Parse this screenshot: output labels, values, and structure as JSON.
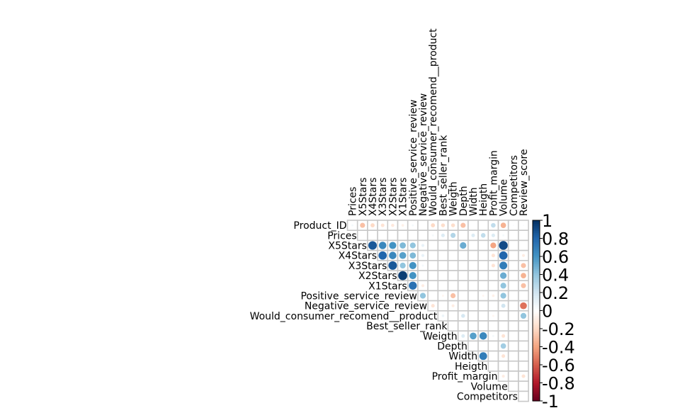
{
  "chart_data": {
    "type": "heatmap",
    "variables": [
      "Product_ID",
      "Prices",
      "X5Stars",
      "X4Stars",
      "X3Stars",
      "X2Stars",
      "X1Stars",
      "Positive_service_review",
      "Negative_service_review",
      "Would_consumer_recomend__product",
      "Best_seller_rank",
      "Weigth",
      "Depth",
      "Width",
      "Heigth",
      "Profit_margin",
      "Volume",
      "Competitors",
      "Review_score"
    ],
    "correlations": [
      [
        1.0,
        0.05,
        -0.3,
        -0.2,
        -0.15,
        -0.12,
        -0.08,
        0.05,
        0.0,
        -0.2,
        -0.18,
        -0.18,
        -0.3,
        0.0,
        0.0,
        0.25,
        -0.35,
        0.02,
        0.02
      ],
      [
        0.05,
        1.0,
        0.0,
        0.0,
        0.0,
        0.0,
        0.0,
        0.0,
        0.0,
        0.05,
        0.15,
        0.3,
        0.0,
        0.15,
        0.25,
        0.15,
        0.05,
        0.0,
        0.0
      ],
      [
        -0.3,
        0.0,
        1.0,
        0.85,
        0.65,
        0.6,
        0.45,
        0.4,
        0.1,
        0.0,
        0.0,
        0.0,
        0.5,
        0.0,
        0.0,
        -0.4,
        0.9,
        0.0,
        0.0
      ],
      [
        -0.2,
        0.0,
        0.85,
        1.0,
        0.8,
        0.65,
        0.55,
        0.45,
        0.1,
        0.0,
        0.0,
        0.0,
        0.0,
        0.0,
        0.0,
        -0.15,
        0.8,
        0.0,
        -0.1
      ],
      [
        -0.15,
        0.0,
        0.65,
        0.8,
        1.0,
        0.85,
        0.4,
        0.6,
        0.05,
        0.0,
        0.0,
        0.0,
        0.0,
        0.0,
        0.0,
        -0.15,
        0.7,
        0.0,
        -0.3
      ],
      [
        -0.12,
        0.0,
        0.6,
        0.65,
        0.85,
        1.0,
        0.95,
        0.6,
        0.0,
        0.0,
        0.0,
        0.0,
        0.0,
        0.0,
        0.0,
        0.0,
        0.5,
        0.0,
        -0.35
      ],
      [
        -0.08,
        0.0,
        0.45,
        0.55,
        0.4,
        0.95,
        1.0,
        0.75,
        -0.1,
        0.0,
        0.0,
        0.0,
        0.0,
        0.0,
        0.0,
        0.0,
        0.4,
        0.0,
        -0.3
      ],
      [
        0.05,
        0.0,
        0.4,
        0.45,
        0.6,
        0.6,
        0.75,
        1.0,
        0.4,
        0.0,
        -0.05,
        -0.3,
        0.0,
        0.0,
        -0.05,
        -0.08,
        0.4,
        0.0,
        0.0
      ],
      [
        0.0,
        0.0,
        0.1,
        0.1,
        0.05,
        0.0,
        -0.1,
        0.4,
        1.0,
        -0.15,
        0.0,
        -0.1,
        0.0,
        0.0,
        0.0,
        0.0,
        0.2,
        0.0,
        -0.55
      ],
      [
        -0.2,
        0.05,
        0.0,
        0.0,
        0.0,
        0.0,
        0.0,
        0.0,
        -0.15,
        1.0,
        0.08,
        0.0,
        0.18,
        0.0,
        0.0,
        -0.05,
        0.0,
        0.0,
        0.4
      ],
      [
        -0.18,
        0.15,
        0.0,
        0.0,
        0.0,
        0.0,
        0.0,
        -0.05,
        0.0,
        0.08,
        1.0,
        0.0,
        0.0,
        0.0,
        0.0,
        0.0,
        0.0,
        0.0,
        0.0
      ],
      [
        -0.18,
        0.3,
        0.0,
        0.0,
        0.0,
        0.0,
        0.0,
        -0.3,
        -0.1,
        0.0,
        0.0,
        1.0,
        0.15,
        0.55,
        0.65,
        0.05,
        -0.15,
        0.0,
        0.0
      ],
      [
        -0.3,
        0.0,
        0.5,
        0.0,
        0.0,
        0.0,
        0.0,
        0.0,
        0.0,
        0.18,
        0.0,
        0.15,
        1.0,
        0.0,
        0.0,
        0.0,
        0.35,
        0.0,
        0.0
      ],
      [
        0.0,
        0.15,
        0.0,
        0.0,
        0.0,
        0.0,
        0.0,
        0.0,
        0.0,
        0.0,
        0.0,
        0.55,
        0.0,
        1.0,
        0.7,
        0.0,
        -0.15,
        0.0,
        0.0
      ],
      [
        0.0,
        0.25,
        0.0,
        0.0,
        0.0,
        0.0,
        0.0,
        -0.05,
        0.0,
        0.0,
        0.0,
        0.65,
        0.0,
        0.7,
        1.0,
        0.0,
        0.0,
        0.0,
        0.0
      ],
      [
        0.25,
        0.15,
        -0.4,
        -0.15,
        -0.15,
        0.0,
        0.0,
        -0.08,
        0.0,
        -0.05,
        0.0,
        0.05,
        0.0,
        0.0,
        0.0,
        1.0,
        -0.1,
        0.0,
        -0.15
      ],
      [
        -0.35,
        0.05,
        0.9,
        0.8,
        0.7,
        0.5,
        0.4,
        0.4,
        0.2,
        0.0,
        0.0,
        -0.15,
        0.35,
        -0.15,
        0.0,
        -0.1,
        1.0,
        0.0,
        0.0
      ],
      [
        0.02,
        0.0,
        0.0,
        0.0,
        0.0,
        0.0,
        0.0,
        0.0,
        0.0,
        0.0,
        0.0,
        0.0,
        0.0,
        0.0,
        0.0,
        0.0,
        0.0,
        1.0,
        0.0
      ],
      [
        0.02,
        0.0,
        0.0,
        -0.1,
        -0.3,
        -0.35,
        -0.3,
        0.0,
        -0.55,
        0.4,
        0.0,
        0.0,
        0.0,
        0.0,
        0.0,
        -0.15,
        0.0,
        0.0,
        1.0
      ]
    ],
    "layout": "upper",
    "diagonal_shown": false,
    "value_range": [
      -1,
      1
    ],
    "colorbar_ticks": [
      "1",
      "0.8",
      "0.6",
      "0.4",
      "0.2",
      "0",
      "-0.2",
      "-0.4",
      "-0.6",
      "-0.8",
      "-1"
    ],
    "colorbar_tick_values": [
      1,
      0.8,
      0.6,
      0.4,
      0.2,
      0,
      -0.2,
      -0.4,
      -0.6,
      -0.8,
      -1
    ],
    "colorscale": [
      "#67001f",
      "#b2182b",
      "#d6604d",
      "#f4a582",
      "#fddbc7",
      "#ffffff",
      "#d1e5f0",
      "#92c5de",
      "#4393c3",
      "#2166ac",
      "#053061"
    ],
    "title": "",
    "legend": "right"
  }
}
